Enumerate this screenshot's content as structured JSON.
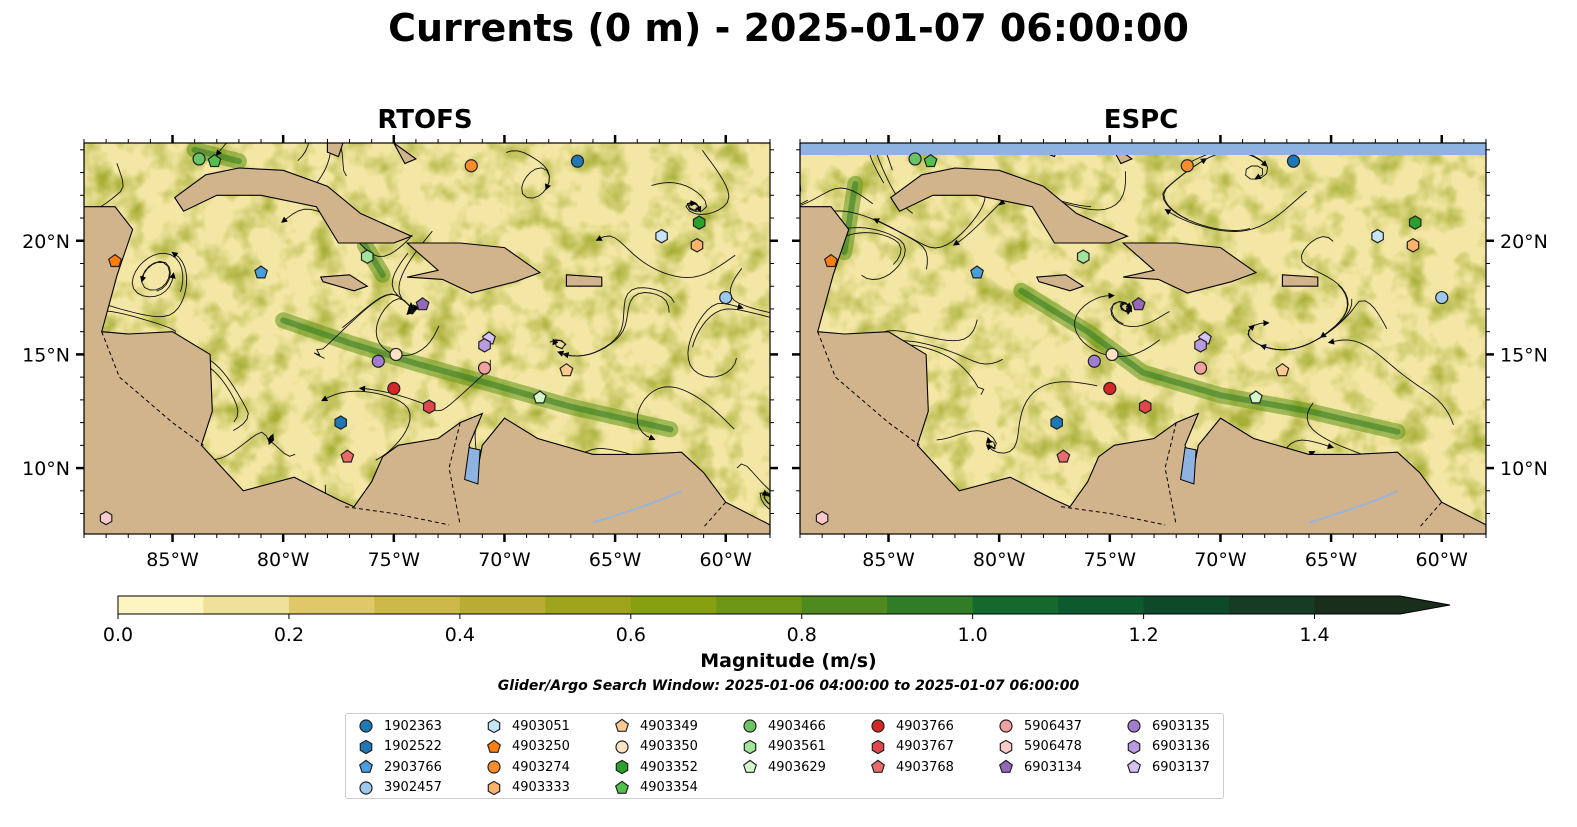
{
  "title": "Currents (0 m) - 2025-01-07 06:00:00",
  "panels": [
    {
      "title": "RTOFS"
    },
    {
      "title": "ESPC"
    }
  ],
  "x_ticks": [
    "85°W",
    "80°W",
    "75°W",
    "70°W",
    "65°W",
    "60°W"
  ],
  "y_ticks": [
    "20°N",
    "15°N",
    "10°N"
  ],
  "colorbar": {
    "label": "Magnitude (m/s)",
    "ticks": [
      "0.0",
      "0.2",
      "0.4",
      "0.6",
      "0.8",
      "1.0",
      "1.2",
      "1.4"
    ],
    "colors": [
      "#fcf5c0",
      "#efe09a",
      "#dfc76a",
      "#cdb84a",
      "#b8ac33",
      "#9ea51d",
      "#86a012",
      "#6d9616",
      "#4f8a1f",
      "#317c27",
      "#14692f",
      "#0c5a2e",
      "#0e4a2a",
      "#153c24",
      "#1a2e1c"
    ]
  },
  "search_window": "Glider/Argo Search Window: 2025-01-06 04:00:00 to 2025-01-07 06:00:00",
  "legend": [
    {
      "id": "1902363",
      "shape": "circle",
      "color": "#1f77b4"
    },
    {
      "id": "1902522",
      "shape": "hexagon",
      "color": "#1f77b4"
    },
    {
      "id": "2903766",
      "shape": "pentagon",
      "color": "#4a9ee0"
    },
    {
      "id": "3902457",
      "shape": "circle",
      "color": "#9ec9ef"
    },
    {
      "id": "4903051",
      "shape": "hexagon",
      "color": "#c6e4f7"
    },
    {
      "id": "4903250",
      "shape": "pentagon",
      "color": "#ff7f0e"
    },
    {
      "id": "4903274",
      "shape": "circle",
      "color": "#ff8c2a"
    },
    {
      "id": "4903333",
      "shape": "hexagon",
      "color": "#ffb26b"
    },
    {
      "id": "4903349",
      "shape": "pentagon",
      "color": "#ffc98f"
    },
    {
      "id": "4903350",
      "shape": "circle",
      "color": "#ffe1c4"
    },
    {
      "id": "4903352",
      "shape": "hexagon",
      "color": "#2ca02c"
    },
    {
      "id": "4903354",
      "shape": "pentagon",
      "color": "#52c04a"
    },
    {
      "id": "4903466",
      "shape": "circle",
      "color": "#69c466"
    },
    {
      "id": "4903561",
      "shape": "hexagon",
      "color": "#a4e49a"
    },
    {
      "id": "4903629",
      "shape": "pentagon",
      "color": "#d4f7cc"
    },
    {
      "id": "4903766",
      "shape": "circle",
      "color": "#d62728"
    },
    {
      "id": "4903767",
      "shape": "hexagon",
      "color": "#e0464a"
    },
    {
      "id": "4903768",
      "shape": "pentagon",
      "color": "#ea6b6b"
    },
    {
      "id": "5906437",
      "shape": "circle",
      "color": "#f2a0a0"
    },
    {
      "id": "5906478",
      "shape": "hexagon",
      "color": "#fccaca"
    },
    {
      "id": "6903134",
      "shape": "pentagon",
      "color": "#9467bd"
    },
    {
      "id": "6903135",
      "shape": "circle",
      "color": "#a27ccf"
    },
    {
      "id": "6903136",
      "shape": "hexagon",
      "color": "#b89be0"
    },
    {
      "id": "6903137",
      "shape": "pentagon",
      "color": "#d6c2f2"
    }
  ],
  "markers_rtofs": [
    {
      "id": "1902363",
      "lon": -66.7,
      "lat": 23.5
    },
    {
      "id": "4903274",
      "lon": -71.5,
      "lat": 23.3
    },
    {
      "id": "4903466",
      "lon": -83.8,
      "lat": 23.6
    },
    {
      "id": "4903354",
      "lon": -83.1,
      "lat": 23.5
    },
    {
      "id": "4903352",
      "lon": -61.2,
      "lat": 20.8
    },
    {
      "id": "4903051",
      "lon": -62.9,
      "lat": 20.2
    },
    {
      "id": "4903333",
      "lon": -61.3,
      "lat": 19.8
    },
    {
      "id": "4903250",
      "lon": -87.6,
      "lat": 19.1
    },
    {
      "id": "2903766",
      "lon": -81.0,
      "lat": 18.6
    },
    {
      "id": "4903561",
      "lon": -76.2,
      "lat": 19.3
    },
    {
      "id": "3902457",
      "lon": -60.0,
      "lat": 17.5
    },
    {
      "id": "6903134",
      "lon": -73.7,
      "lat": 17.2
    },
    {
      "id": "6903137",
      "lon": -70.7,
      "lat": 15.7
    },
    {
      "id": "6903136",
      "lon": -70.9,
      "lat": 15.4
    },
    {
      "id": "4903350",
      "lon": -74.9,
      "lat": 15.0
    },
    {
      "id": "6903135",
      "lon": -75.7,
      "lat": 14.7
    },
    {
      "id": "5906437",
      "lon": -70.9,
      "lat": 14.4
    },
    {
      "id": "4903349",
      "lon": -67.2,
      "lat": 14.3
    },
    {
      "id": "4903766",
      "lon": -75.0,
      "lat": 13.5
    },
    {
      "id": "4903629",
      "lon": -68.4,
      "lat": 13.1
    },
    {
      "id": "4903767",
      "lon": -73.4,
      "lat": 12.7
    },
    {
      "id": "1902522",
      "lon": -77.4,
      "lat": 12.0
    },
    {
      "id": "4903768",
      "lon": -77.1,
      "lat": 10.5
    },
    {
      "id": "5906478",
      "lon": -88.0,
      "lat": 7.8
    }
  ],
  "markers_espc": [
    {
      "id": "1902363",
      "lon": -66.7,
      "lat": 23.5
    },
    {
      "id": "4903274",
      "lon": -71.5,
      "lat": 23.3
    },
    {
      "id": "4903466",
      "lon": -83.8,
      "lat": 23.6
    },
    {
      "id": "4903354",
      "lon": -83.1,
      "lat": 23.5
    },
    {
      "id": "4903352",
      "lon": -61.2,
      "lat": 20.8
    },
    {
      "id": "4903051",
      "lon": -62.9,
      "lat": 20.2
    },
    {
      "id": "4903333",
      "lon": -61.3,
      "lat": 19.8
    },
    {
      "id": "4903250",
      "lon": -87.6,
      "lat": 19.1
    },
    {
      "id": "2903766",
      "lon": -81.0,
      "lat": 18.6
    },
    {
      "id": "4903561",
      "lon": -76.2,
      "lat": 19.3
    },
    {
      "id": "3902457",
      "lon": -60.0,
      "lat": 17.5
    },
    {
      "id": "6903134",
      "lon": -73.7,
      "lat": 17.2
    },
    {
      "id": "6903137",
      "lon": -70.7,
      "lat": 15.7
    },
    {
      "id": "6903136",
      "lon": -70.9,
      "lat": 15.4
    },
    {
      "id": "4903350",
      "lon": -74.9,
      "lat": 15.0
    },
    {
      "id": "6903135",
      "lon": -75.7,
      "lat": 14.7
    },
    {
      "id": "5906437",
      "lon": -70.9,
      "lat": 14.4
    },
    {
      "id": "4903349",
      "lon": -67.2,
      "lat": 14.3
    },
    {
      "id": "4903766",
      "lon": -75.0,
      "lat": 13.5
    },
    {
      "id": "4903629",
      "lon": -68.4,
      "lat": 13.1
    },
    {
      "id": "4903767",
      "lon": -73.4,
      "lat": 12.7
    },
    {
      "id": "1902522",
      "lon": -77.4,
      "lat": 12.0
    },
    {
      "id": "4903768",
      "lon": -77.1,
      "lat": 10.5
    },
    {
      "id": "5906478",
      "lon": -88.0,
      "lat": 7.8
    }
  ]
}
